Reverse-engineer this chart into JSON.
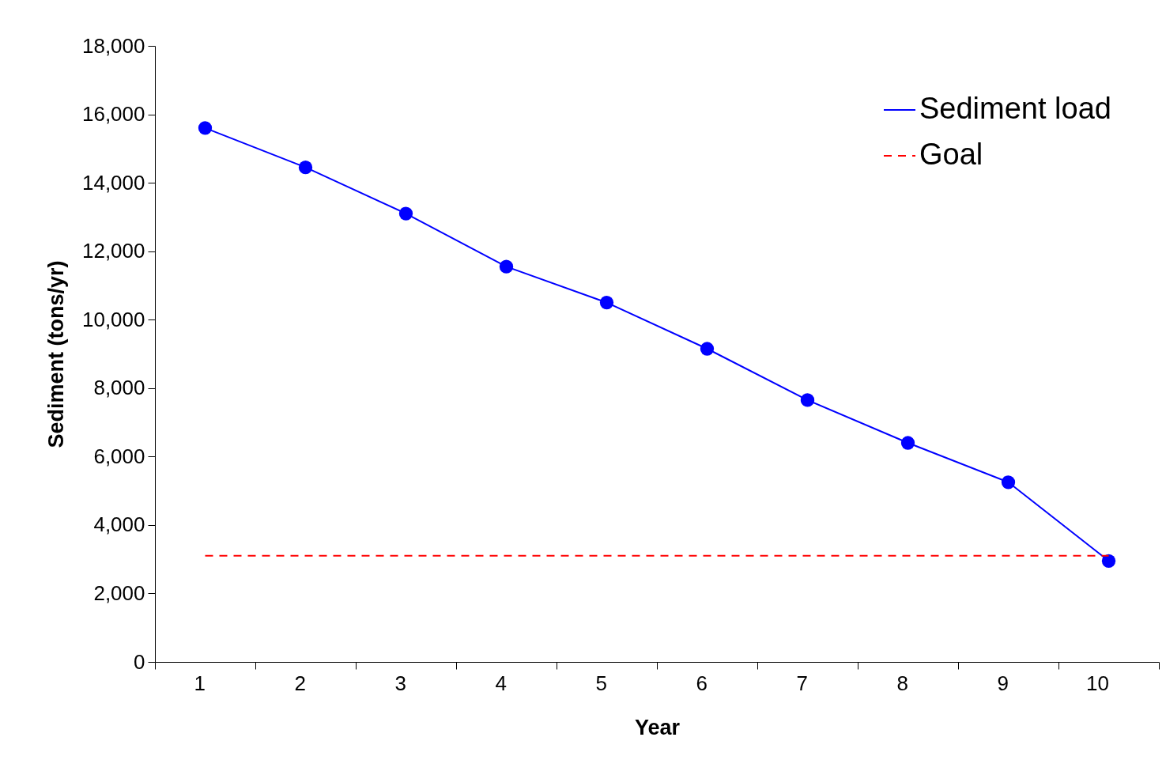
{
  "chart_data": {
    "type": "line",
    "xlabel": "Year",
    "ylabel": "Sediment (tons/yr)",
    "categories": [
      "1",
      "2",
      "3",
      "4",
      "5",
      "6",
      "7",
      "8",
      "9",
      "10"
    ],
    "series": [
      {
        "name": "Sediment load",
        "color": "#0000ff",
        "marker": "circle",
        "line_style": "solid",
        "values": [
          15600,
          14450,
          13100,
          11550,
          10500,
          9150,
          7650,
          6400,
          5250,
          2950
        ]
      },
      {
        "name": "Goal",
        "color": "#ff0000",
        "marker": "none",
        "line_style": "dashed",
        "values": [
          3100,
          3100,
          3100,
          3100,
          3100,
          3100,
          3100,
          3100,
          3100,
          3100
        ]
      }
    ],
    "ylim": [
      0,
      18000
    ],
    "yticks": [
      0,
      {
        "value": 2000,
        "label": "2,000"
      },
      {
        "value": 4000,
        "label": "4,000"
      },
      {
        "value": 6000,
        "label": "6,000"
      },
      {
        "value": 8000,
        "label": "8,000"
      },
      {
        "value": 10000,
        "label": "10,000"
      },
      {
        "value": 12000,
        "label": "12,000"
      },
      {
        "value": 14000,
        "label": "14,000"
      },
      {
        "value": 16000,
        "label": "16,000"
      },
      {
        "value": 18000,
        "label": "18,000"
      }
    ],
    "grid": false,
    "legend": "top right"
  }
}
